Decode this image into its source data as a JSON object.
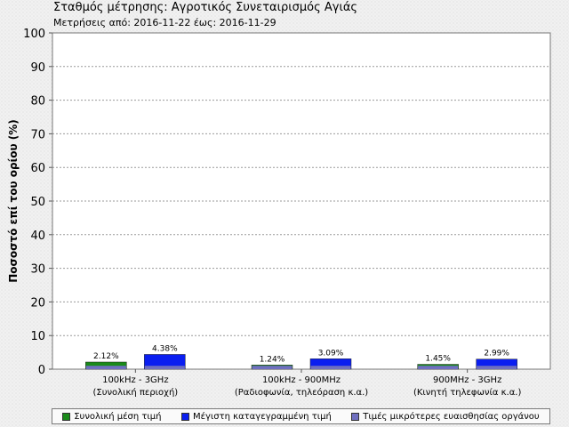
{
  "title": "Σταθμός μέτρησης: Αγροτικός Συνεταιρισμός Αγιάς",
  "subtitle": "Μετρήσεις από: 2016-11-22 έως: 2016-11-29",
  "chart_data": {
    "type": "bar",
    "ylabel": "Ποσοστό επί του ορίου (%)",
    "xlabel": "",
    "ylim": [
      0,
      100
    ],
    "yticks": [
      0,
      10,
      20,
      30,
      40,
      50,
      60,
      70,
      80,
      90,
      100
    ],
    "grid": true,
    "legend_position": "bottom",
    "categories": [
      {
        "line1": "100kHz - 3GHz",
        "line2": "(Συνολική περιοχή)"
      },
      {
        "line1": "100kHz - 900MHz",
        "line2": "(Ραδιοφωνία, τηλεόραση κ.α.)"
      },
      {
        "line1": "900MHz - 3GHz",
        "line2": "(Κινητή τηλεφωνία κ.α.)"
      }
    ],
    "series": [
      {
        "name": "Συνολική μέση τιμή",
        "color": "#1a8a1a",
        "values": [
          2.12,
          1.24,
          1.45
        ],
        "labels": [
          "2.12%",
          "1.24%",
          "1.45%"
        ]
      },
      {
        "name": "Μέγιστη καταγεγραμμένη τιμή",
        "color": "#0a1ef0",
        "values": [
          4.38,
          3.09,
          2.99
        ],
        "labels": [
          "4.38%",
          "3.09%",
          "2.99%"
        ]
      }
    ],
    "sensitivity_band": {
      "name": "Τιμές μικρότερες ευαισθησίας οργάνου",
      "color": "#6f6fc0",
      "value": 1.0
    }
  }
}
